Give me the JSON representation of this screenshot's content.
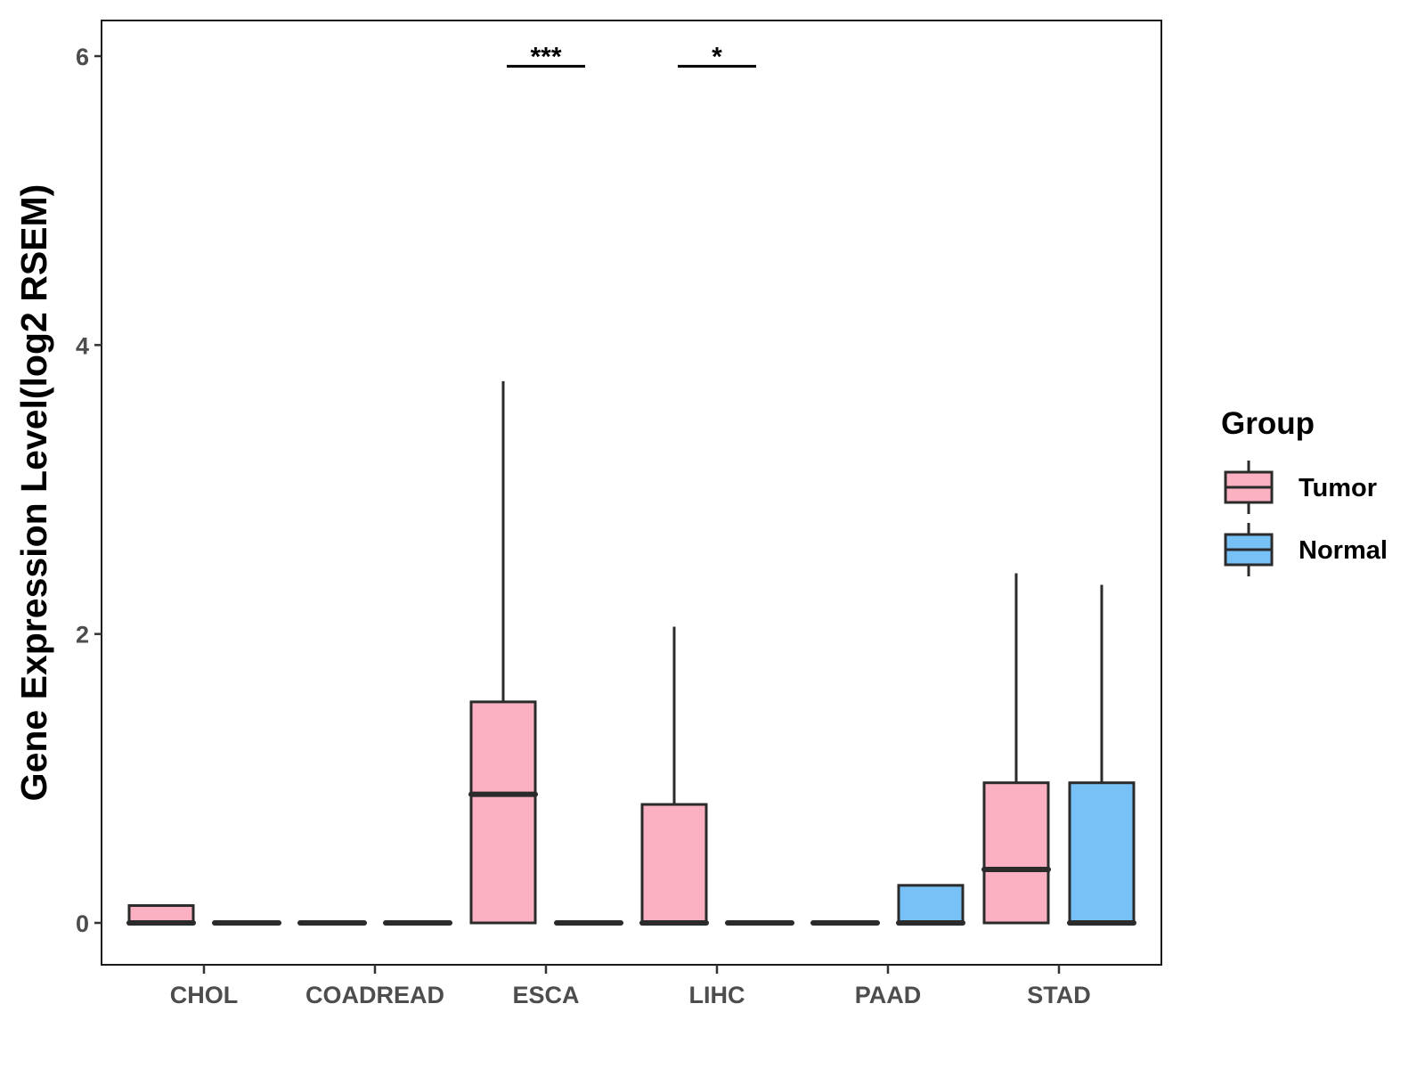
{
  "chart_data": {
    "type": "boxplot",
    "title": "",
    "xlabel": "",
    "ylabel": "Gene Expression Level(log2 RSEM)",
    "ylim": [
      -0.3,
      6.25
    ],
    "yticks": [
      0,
      2,
      4,
      6
    ],
    "grid": false,
    "legend_position": "right",
    "categories": [
      "CHOL",
      "COADREAD",
      "ESCA",
      "LIHC",
      "PAAD",
      "STAD"
    ],
    "legend": {
      "title": "Group",
      "entries": [
        {
          "name": "Tumor",
          "color": "#FBB1C2"
        },
        {
          "name": "Normal",
          "color": "#78C1F7"
        }
      ]
    },
    "series": [
      {
        "name": "Tumor",
        "color": "#FBB1C2",
        "boxes": [
          {
            "category": "CHOL",
            "min": 0,
            "q1": 0,
            "median": 0,
            "q3": 0.12,
            "max": 0.12
          },
          {
            "category": "COADREAD",
            "min": 0,
            "q1": 0,
            "median": 0,
            "q3": 0,
            "max": 0
          },
          {
            "category": "ESCA",
            "min": 0,
            "q1": 0,
            "median": 0.89,
            "q3": 1.53,
            "max": 3.75
          },
          {
            "category": "LIHC",
            "min": 0,
            "q1": 0,
            "median": 0,
            "q3": 0.82,
            "max": 2.05
          },
          {
            "category": "PAAD",
            "min": 0,
            "q1": 0,
            "median": 0,
            "q3": 0,
            "max": 0
          },
          {
            "category": "STAD",
            "min": 0,
            "q1": 0,
            "median": 0.37,
            "q3": 0.97,
            "max": 2.42
          }
        ]
      },
      {
        "name": "Normal",
        "color": "#78C1F7",
        "boxes": [
          {
            "category": "CHOL",
            "min": 0,
            "q1": 0,
            "median": 0,
            "q3": 0,
            "max": 0
          },
          {
            "category": "COADREAD",
            "min": 0,
            "q1": 0,
            "median": 0,
            "q3": 0,
            "max": 0
          },
          {
            "category": "ESCA",
            "min": 0,
            "q1": 0,
            "median": 0,
            "q3": 0,
            "max": 0
          },
          {
            "category": "LIHC",
            "min": 0,
            "q1": 0,
            "median": 0,
            "q3": 0,
            "max": 0
          },
          {
            "category": "PAAD",
            "min": 0,
            "q1": 0,
            "median": 0,
            "q3": 0.26,
            "max": 0.26
          },
          {
            "category": "STAD",
            "min": 0,
            "q1": 0,
            "median": 0,
            "q3": 0.97,
            "max": 2.34
          }
        ]
      }
    ],
    "annotations": [
      {
        "category": "ESCA",
        "label": "***",
        "y": 5.93
      },
      {
        "category": "LIHC",
        "label": "*",
        "y": 5.93
      }
    ]
  }
}
